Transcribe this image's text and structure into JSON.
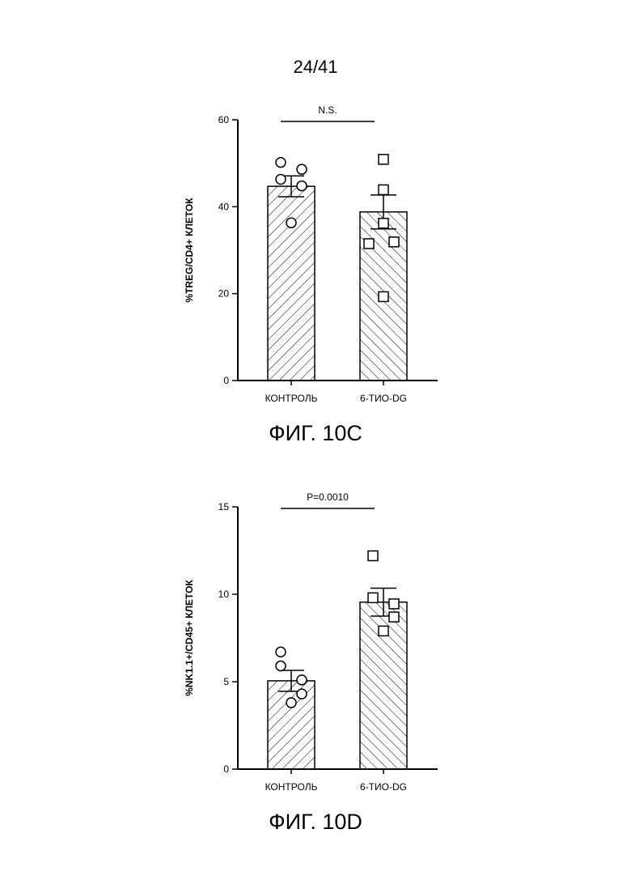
{
  "page_number": "24/41",
  "charts": [
    {
      "caption": "ФИГ. 10С",
      "chart_data": {
        "type": "bar",
        "title": "",
        "xlabel": "",
        "ylabel": "%TREG/CD4+ КЛЕТОК",
        "ylim": [
          0,
          60
        ],
        "yticks": [
          0,
          20,
          40,
          60
        ],
        "categories": [
          "КОНТРОЛЬ",
          "6-ТИО-DG"
        ],
        "values": [
          44.7,
          38.8
        ],
        "errors": [
          2.4,
          3.9
        ],
        "points": [
          [
            50.2,
            46.3,
            48.6,
            44.8,
            36.3
          ],
          [
            50.9,
            43.9,
            36.2,
            31.5,
            31.9,
            19.3
          ]
        ],
        "markers": [
          "circle",
          "square"
        ],
        "hatch": [
          "forward",
          "backward"
        ],
        "annotation": "N.S.",
        "grid": false
      }
    },
    {
      "caption": "ФИГ. 10D",
      "chart_data": {
        "type": "bar",
        "title": "",
        "xlabel": "",
        "ylabel": "%NK1.1+/CD45+ КЛЕТОК",
        "ylim": [
          0,
          15
        ],
        "yticks": [
          0,
          5,
          10,
          15
        ],
        "categories": [
          "КОНТРОЛЬ",
          "6-ТИО-DG"
        ],
        "values": [
          5.05,
          9.55
        ],
        "errors": [
          0.6,
          0.8
        ],
        "points": [
          [
            6.7,
            5.9,
            5.1,
            4.3,
            3.8
          ],
          [
            12.2,
            9.8,
            9.45,
            8.7,
            7.9
          ]
        ],
        "markers": [
          "circle",
          "square"
        ],
        "hatch": [
          "forward",
          "backward"
        ],
        "annotation": "P=0.0010",
        "grid": false
      }
    }
  ]
}
